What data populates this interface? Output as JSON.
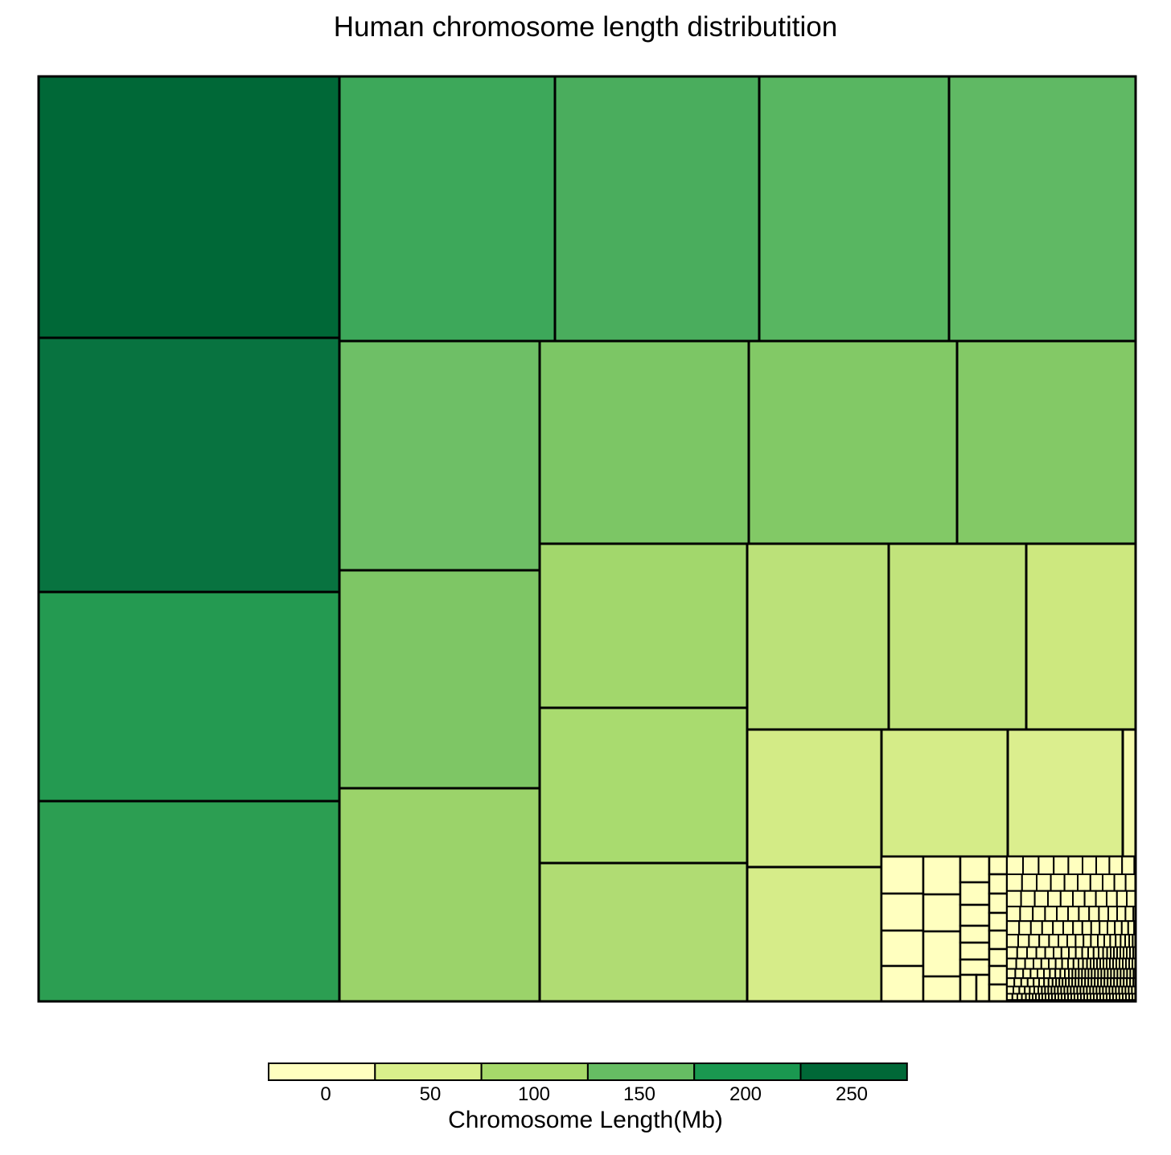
{
  "chart_data": {
    "type": "treemap",
    "title": "Human chromosome length distributition",
    "value_unit": "Mb",
    "colorscale": {
      "label": "Chromosome Length(Mb)",
      "ticks": [
        0,
        50,
        100,
        150,
        200,
        250
      ],
      "colors": [
        "#ffffbf",
        "#d9ef8b",
        "#a6d96a",
        "#66bd63",
        "#1a9850",
        "#006837"
      ]
    },
    "major_cells": [
      {
        "value": 248,
        "color": "#006837"
      },
      {
        "value": 242,
        "color": "#087340"
      },
      {
        "value": 198,
        "color": "#249a51"
      },
      {
        "value": 190,
        "color": "#2c9e52"
      },
      {
        "value": 181,
        "color": "#3da85a"
      },
      {
        "value": 171,
        "color": "#4aad5d"
      },
      {
        "value": 159,
        "color": "#58b661"
      },
      {
        "value": 146,
        "color": "#60b964"
      },
      {
        "value": 145,
        "color": "#6ebf66"
      },
      {
        "value": 138,
        "color": "#7cc665"
      },
      {
        "value": 135,
        "color": "#82c966"
      },
      {
        "value": 133,
        "color": "#83c966"
      },
      {
        "value": 114,
        "color": "#7ec665"
      },
      {
        "value": 107,
        "color": "#9bd36a"
      },
      {
        "value": 102,
        "color": "#a2d76c"
      },
      {
        "value": 101,
        "color": "#a9db6f"
      },
      {
        "value": 83,
        "color": "#b0dc73"
      },
      {
        "value": 80,
        "color": "#bbe179"
      },
      {
        "value": 78,
        "color": "#c1e37b"
      },
      {
        "value": 64,
        "color": "#cde87f"
      },
      {
        "value": 59,
        "color": "#d3eb86"
      },
      {
        "value": 58,
        "color": "#d5ec88"
      },
      {
        "value": 50,
        "color": "#dbee8e"
      },
      {
        "value": 46,
        "color": "#d6ec89"
      },
      {
        "value": 4,
        "color": "#f4f9ab"
      }
    ],
    "small_cells_note": "",
    "small_cell_color": "#ffffbf"
  }
}
